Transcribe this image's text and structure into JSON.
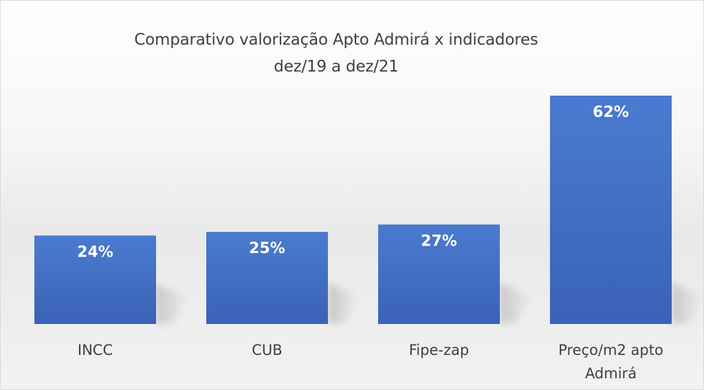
{
  "chart_data": {
    "type": "bar",
    "title": "Comparativo valorização Apto Admirá  x indicadores",
    "subtitle": "dez/19 a dez/21",
    "categories": [
      [
        "INCC"
      ],
      [
        "CUB"
      ],
      [
        "Fipe-zap"
      ],
      [
        "Preço/m2  apto",
        "Admirá"
      ]
    ],
    "values": [
      24,
      25,
      27,
      62
    ],
    "data_labels": [
      "24%",
      "25%",
      "27%",
      "62%"
    ],
    "unit": "%",
    "ylim": [
      0,
      62
    ],
    "grid": false,
    "legend": "none",
    "axes_visible": false,
    "colors": {
      "bar_top": "#4a7bd0",
      "bar_bottom": "#3a62b6",
      "data_label": "#ffffff",
      "category_text": "#3f3f3f",
      "title_text": "#404040"
    }
  }
}
